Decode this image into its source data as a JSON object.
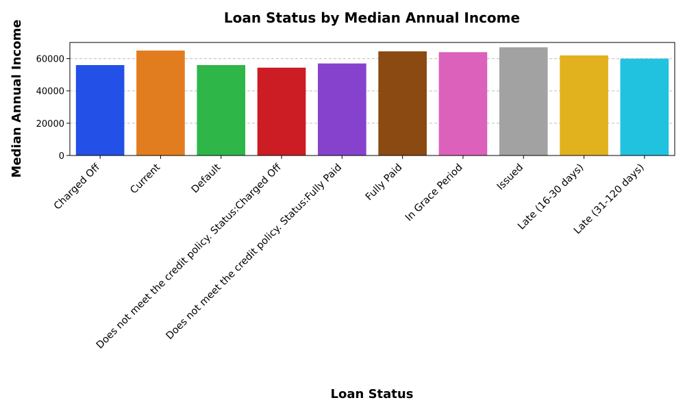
{
  "chart_data": {
    "type": "bar",
    "title": "Loan Status by Median Annual Income",
    "xlabel": "Loan Status",
    "ylabel": "Median Annual Income",
    "ylim": [
      0,
      70000
    ],
    "yticks": [
      0,
      20000,
      40000,
      60000
    ],
    "grid": "horizontal dashed",
    "categories": [
      "Charged Off",
      "Current",
      "Default",
      "Does not meet the credit policy. Status:Charged Off",
      "Does not meet the credit policy. Status:Fully Paid",
      "Fully Paid",
      "In Grace Period",
      "Issued",
      "Late (16-30 days)",
      "Late (31-120 days)"
    ],
    "values": [
      56000,
      65000,
      56000,
      54400,
      57000,
      64500,
      64000,
      67000,
      62000,
      60000
    ],
    "colors": [
      "#2351e7",
      "#e27d1f",
      "#2fb648",
      "#cc1c24",
      "#8642cc",
      "#8b4a12",
      "#dc61bb",
      "#a2a2a2",
      "#e2b11e",
      "#20c2e0"
    ]
  }
}
